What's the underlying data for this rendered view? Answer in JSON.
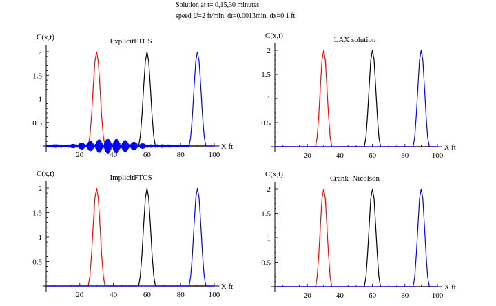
{
  "header": {
    "line1": "Solution at t= 0,15,30 minutes.",
    "line2": "speed U=2 ft/min,  dt=0.0013min.   dx=0.1 ft."
  },
  "chart_data": [
    {
      "type": "line",
      "title": "ExplicitFTCS",
      "xlabel": "X ft",
      "ylabel": "C(x,t)",
      "xlim": [
        0,
        100
      ],
      "ylim": [
        0,
        2
      ],
      "xticks": [
        "20",
        "40",
        "60",
        "80",
        "100"
      ],
      "yticks": [
        "0.5",
        "1",
        "1.5",
        "2"
      ],
      "oscillation": {
        "series": "t=30",
        "x_range": [
          0,
          85
        ],
        "max_amplitude": 0.15
      }
    },
    {
      "type": "line",
      "title": "LAX solution",
      "xlabel": "X ft",
      "ylabel": "C(x,t)",
      "xlim": [
        0,
        100
      ],
      "ylim": [
        0,
        2
      ],
      "xticks": [
        "20",
        "40",
        "60",
        "80",
        "100"
      ],
      "yticks": [
        "0.5",
        "1",
        "1.5",
        "2"
      ]
    },
    {
      "type": "line",
      "title": "ImplicitFTCS",
      "xlabel": "X ft",
      "ylabel": "C(x,t)",
      "xlim": [
        0,
        100
      ],
      "ylim": [
        0,
        2
      ],
      "xticks": [
        "20",
        "40",
        "60",
        "80",
        "100"
      ],
      "yticks": [
        "0.5",
        "1",
        "1.5",
        "2"
      ]
    },
    {
      "type": "line",
      "title": "Crank–Nicolson",
      "xlabel": "X ft",
      "ylabel": "C(x,t)",
      "xlim": [
        0,
        100
      ],
      "ylim": [
        0,
        2
      ],
      "xticks": [
        "20",
        "40",
        "60",
        "80",
        "100"
      ],
      "yticks": [
        "0.5",
        "1",
        "1.5",
        "2"
      ]
    }
  ],
  "series": [
    {
      "name": "t=0",
      "color": "#ff0000",
      "x": [
        0,
        25,
        26,
        27,
        28,
        29,
        30,
        31,
        32,
        33,
        34,
        35,
        100
      ],
      "y": [
        0,
        0,
        0.2,
        0.65,
        1.25,
        1.8,
        2,
        1.8,
        1.25,
        0.65,
        0.2,
        0,
        0
      ]
    },
    {
      "name": "t=15",
      "color": "#000000",
      "x": [
        0,
        55,
        56,
        57,
        58,
        59,
        60,
        61,
        62,
        63,
        64,
        65,
        100
      ],
      "y": [
        0,
        0,
        0.2,
        0.65,
        1.25,
        1.8,
        2,
        1.8,
        1.25,
        0.65,
        0.2,
        0,
        0
      ]
    },
    {
      "name": "t=30",
      "color": "#0000ff",
      "x": [
        0,
        85,
        86,
        87,
        88,
        89,
        90,
        91,
        92,
        93,
        94,
        95,
        100
      ],
      "y": [
        0,
        0,
        0.2,
        0.65,
        1.25,
        1.8,
        2,
        1.8,
        1.25,
        0.65,
        0.2,
        0,
        0
      ]
    }
  ]
}
